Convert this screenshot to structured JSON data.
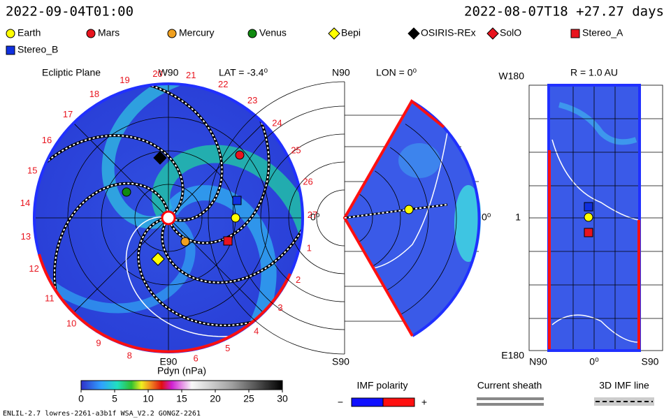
{
  "header": {
    "left": "2022-09-04T01:00",
    "right": "2022-08-07T18 +27.27 days"
  },
  "legend": [
    {
      "label": "Earth",
      "shape": "circle",
      "color": "#ffff00"
    },
    {
      "label": "Mars",
      "shape": "circle",
      "color": "#e8141e"
    },
    {
      "label": "Mercury",
      "shape": "circle",
      "color": "#f0a020"
    },
    {
      "label": "Venus",
      "shape": "circle",
      "color": "#108a10"
    },
    {
      "label": "Bepi",
      "shape": "diamond",
      "color": "#ffff00"
    },
    {
      "label": "OSIRIS-REx",
      "shape": "diamond",
      "color": "#000000"
    },
    {
      "label": "SolO",
      "shape": "diamond",
      "color": "#e8141e"
    },
    {
      "label": "Stereo_A",
      "shape": "square",
      "color": "#e8141e"
    },
    {
      "label": "Stereo_B",
      "shape": "square",
      "color": "#1030e0"
    }
  ],
  "ecliptic": {
    "title": "Ecliptic Plane",
    "top": "W90",
    "lat": "LAT = -3.4⁰",
    "right": "0⁰",
    "bottom": "E90",
    "carrington": [
      "1",
      "2",
      "3",
      "4",
      "5",
      "6",
      "8",
      "9",
      "10",
      "11",
      "12",
      "13",
      "14",
      "15",
      "16",
      "17",
      "18",
      "19",
      "20",
      "21",
      "22",
      "23",
      "24",
      "25",
      "26",
      "27"
    ]
  },
  "meridional": {
    "top": "N90",
    "lon": "LON = 0⁰",
    "right": "0⁰",
    "bottom": "S90"
  },
  "sphere": {
    "top_left": "W180",
    "title": "R = 1.0 AU",
    "mid_left": "1",
    "bottom_left": "E180",
    "x_left": "N90",
    "x_mid": "0⁰",
    "x_right": "S90"
  },
  "colorbar": {
    "title": "Pdyn (nPa)",
    "lim": [
      0,
      30
    ],
    "ticks": [
      0,
      5,
      10,
      15,
      20,
      25,
      30
    ]
  },
  "keys": {
    "imf": "IMF polarity",
    "minus": "−",
    "plus": "+",
    "sheath": "Current sheath",
    "imf_line": "3D IMF line"
  },
  "footer": "ENLIL-2.7 lowres-2261-a3b1f WSA_V2.2 GONGZ-2261"
}
